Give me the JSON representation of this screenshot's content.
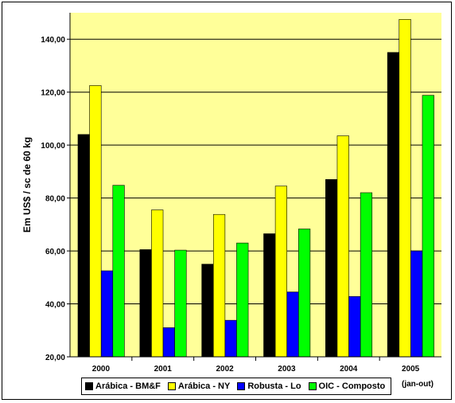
{
  "chart_data": {
    "type": "bar",
    "categories": [
      "2000",
      "2001",
      "2002",
      "2003",
      "2004",
      "2005"
    ],
    "series": [
      {
        "name": "Arábica - BM&F",
        "color": "#000000",
        "values": [
          104.0,
          60.5,
          55.0,
          66.5,
          87.0,
          135.0
        ]
      },
      {
        "name": "Arábica - NY",
        "color": "#FFFF00",
        "values": [
          122.5,
          75.5,
          73.8,
          84.5,
          103.5,
          147.5
        ]
      },
      {
        "name": "Robusta - Lo",
        "color": "#0000FF",
        "values": [
          52.5,
          31.0,
          33.8,
          44.5,
          42.8,
          60.0
        ]
      },
      {
        "name": "OIC - Composto",
        "color": "#00FF00",
        "values": [
          84.8,
          60.3,
          63.0,
          68.3,
          82.0,
          118.8
        ]
      }
    ],
    "ylabel": "Em US$ / sc de 60 kg",
    "ylim": [
      20,
      150
    ],
    "yticks": [
      "20,00",
      "40,00",
      "60,00",
      "80,00",
      "100,00",
      "120,00",
      "140,00"
    ],
    "ytick_values": [
      20,
      40,
      60,
      80,
      100,
      120,
      140
    ],
    "grid": true,
    "legend": "bottom",
    "note": "(jan-out)",
    "plot_background": "#FFFF99"
  }
}
